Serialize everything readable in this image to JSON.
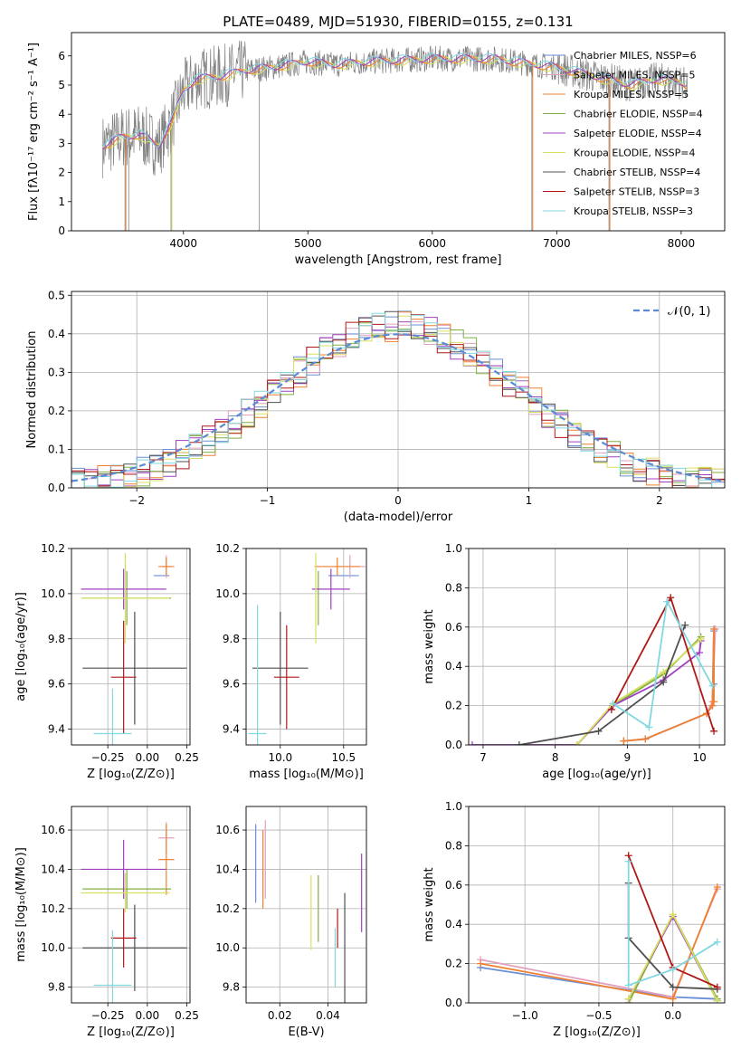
{
  "figure_title": "PLATE=0489, MJD=51930, FIBERID=0155, z=0.131",
  "colors": {
    "chabrier_miles": "#6a8fd5",
    "salpeter_miles": "#e0a0c0",
    "kroupa_miles": "#f08030",
    "chabrier_elodie": "#80b040",
    "salpeter_elodie": "#a040c0",
    "kroupa_elodie": "#d8e060",
    "chabrier_stelib": "#505050",
    "salpeter_stelib": "#b01818",
    "kroupa_stelib": "#80d8e0",
    "data": "#808080",
    "normal": "#5b8ad6",
    "grid": "#b0b0b0"
  },
  "chart_data": [
    {
      "id": "spectrum",
      "type": "line",
      "xlabel": "wavelength [Angstrom, rest frame]",
      "ylabel": "Flux [fλ10⁻¹⁷ erg cm⁻² s⁻¹ A⁻¹]",
      "xlim": [
        3100,
        8350
      ],
      "ylim": [
        0,
        6.8
      ],
      "xticks": [
        "4000",
        "5000",
        "6000",
        "7000",
        "8000"
      ],
      "yticks": [
        "0",
        "1",
        "2",
        "3",
        "4",
        "5",
        "6"
      ],
      "legend": [
        "Chabrier MILES, NSSP=6",
        "Salpeter MILES, NSSP=5",
        "Kroupa MILES, NSSP=5",
        "Chabrier ELODIE, NSSP=4",
        "Salpeter ELODIE, NSSP=4",
        "Kroupa ELODIE, NSSP=4",
        "Chabrier STELIB, NSSP=4",
        "Salpeter STELIB, NSSP=3",
        "Kroupa STELIB, NSSP=3"
      ],
      "continuum_x": [
        3350,
        3500,
        3650,
        3800,
        3900,
        4000,
        4100,
        4300,
        4500,
        4700,
        5000,
        5200,
        5500,
        6000,
        6500,
        7000,
        7300,
        7600,
        7800,
        8000,
        8050
      ],
      "continuum_y": [
        2.9,
        3.2,
        3.3,
        2.9,
        3.7,
        4.8,
        5.2,
        5.3,
        5.5,
        5.6,
        5.8,
        5.7,
        5.8,
        5.9,
        5.9,
        5.6,
        5.3,
        5.0,
        5.2,
        5.1,
        5.0
      ]
    },
    {
      "id": "residuals",
      "type": "histogram",
      "xlabel": "(data-model)/error",
      "ylabel": "Normed distribution",
      "xlim": [
        -2.5,
        2.5
      ],
      "ylim": [
        0,
        0.51
      ],
      "xticks": [
        "−2",
        "−1",
        "0",
        "1",
        "2"
      ],
      "yticks": [
        "0.0",
        "0.1",
        "0.2",
        "0.3",
        "0.4",
        "0.5"
      ],
      "legend": "𝒩(0, 1)"
    },
    {
      "id": "age_vs_Z",
      "type": "scatter",
      "xlabel": "Z [log₁₀(Z/Z⊙)]",
      "ylabel": "age  [log₁₀(age/yr)]",
      "xlim": [
        -0.48,
        0.27
      ],
      "ylim": [
        9.33,
        10.2
      ],
      "xticks": [
        "−0.25",
        "0.00",
        "0.25"
      ],
      "yticks": [
        "9.4",
        "9.6",
        "9.8",
        "10.0",
        "10.2"
      ],
      "points": [
        {
          "s": "chabrier_miles",
          "x": 0.09,
          "y": 10.08,
          "xe": 0.05,
          "ye": 0.0
        },
        {
          "s": "salpeter_miles",
          "x": 0.12,
          "y": 10.12,
          "xe": 0.03,
          "ye": 0.05
        },
        {
          "s": "kroupa_miles",
          "x": 0.12,
          "y": 10.12,
          "xe": 0.05,
          "ye": 0.04
        },
        {
          "s": "chabrier_elodie",
          "x": -0.13,
          "y": 9.98,
          "xe": 0.28,
          "ye": 0.12
        },
        {
          "s": "salpeter_elodie",
          "x": -0.15,
          "y": 10.02,
          "xe": 0.27,
          "ye": 0.09
        },
        {
          "s": "kroupa_elodie",
          "x": -0.14,
          "y": 9.98,
          "xe": 0.28,
          "ye": 0.2
        },
        {
          "s": "chabrier_stelib",
          "x": -0.08,
          "y": 9.67,
          "xe": 0.33,
          "ye": 0.25
        },
        {
          "s": "salpeter_stelib",
          "x": -0.15,
          "y": 9.63,
          "xe": 0.08,
          "ye": 0.25
        },
        {
          "s": "kroupa_stelib",
          "x": -0.22,
          "y": 9.38,
          "xe": 0.12,
          "ye": 0.2
        }
      ]
    },
    {
      "id": "age_vs_mass",
      "type": "scatter",
      "xlabel": "mass [log₁₀(M/M⊙)]",
      "ylabel": "",
      "xlim": [
        9.73,
        10.68
      ],
      "ylim": [
        9.33,
        10.2
      ],
      "xticks": [
        "10.0",
        "10.5"
      ],
      "yticks": [
        "9.4",
        "9.6",
        "9.8",
        "10.0",
        "10.2"
      ],
      "points": [
        {
          "s": "chabrier_miles",
          "x": 10.5,
          "y": 10.08,
          "xe": 0.12,
          "ye": 0.0
        },
        {
          "s": "salpeter_miles",
          "x": 10.55,
          "y": 10.12,
          "xe": 0.12,
          "ye": 0.05
        },
        {
          "s": "kroupa_miles",
          "x": 10.45,
          "y": 10.12,
          "xe": 0.18,
          "ye": 0.04
        },
        {
          "s": "chabrier_elodie",
          "x": 10.3,
          "y": 9.98,
          "xe": 0.0,
          "ye": 0.12
        },
        {
          "s": "salpeter_elodie",
          "x": 10.4,
          "y": 10.02,
          "xe": 0.15,
          "ye": 0.09
        },
        {
          "s": "kroupa_elodie",
          "x": 10.28,
          "y": 9.98,
          "xe": 0.0,
          "ye": 0.2
        },
        {
          "s": "chabrier_stelib",
          "x": 10.0,
          "y": 9.67,
          "xe": 0.22,
          "ye": 0.25
        },
        {
          "s": "salpeter_stelib",
          "x": 10.05,
          "y": 9.63,
          "xe": 0.1,
          "ye": 0.23
        },
        {
          "s": "kroupa_stelib",
          "x": 9.82,
          "y": 9.38,
          "xe": 0.07,
          "ye": 0.57
        }
      ]
    },
    {
      "id": "mass_weight_vs_age",
      "type": "line",
      "xlabel": "age  [log₁₀(age/yr)]",
      "ylabel": "mass weight",
      "xlim": [
        6.8,
        10.35
      ],
      "ylim": [
        0,
        1
      ],
      "xticks": [
        "7",
        "8",
        "9",
        "10"
      ],
      "yticks": [
        "0.0",
        "0.2",
        "0.4",
        "0.6",
        "0.8",
        "1.0"
      ],
      "series": [
        {
          "s": "chabrier_miles",
          "x": [
            8.95,
            9.25,
            10.1,
            10.18,
            10.2,
            10.2
          ],
          "y": [
            0.02,
            0.03,
            0.16,
            0.2,
            0.58,
            0.31
          ]
        },
        {
          "s": "salpeter_miles",
          "x": [
            8.95,
            9.25,
            10.1,
            10.18,
            10.22
          ],
          "y": [
            0.02,
            0.03,
            0.16,
            0.22,
            0.59
          ]
        },
        {
          "s": "kroupa_miles",
          "x": [
            8.95,
            9.25,
            10.1,
            10.18,
            10.2,
            10.2
          ],
          "y": [
            0.02,
            0.03,
            0.16,
            0.2,
            0.59,
            0.22
          ]
        },
        {
          "s": "chabrier_elodie",
          "x": [
            8.3,
            8.8,
            9.5,
            10.02
          ],
          "y": [
            0.0,
            0.2,
            0.36,
            0.55
          ]
        },
        {
          "s": "salpeter_elodie",
          "x": [
            6.85,
            8.3,
            8.8,
            9.5,
            10.0,
            10.02
          ],
          "y": [
            0.0,
            0.0,
            0.2,
            0.33,
            0.47,
            0.53
          ]
        },
        {
          "s": "kroupa_elodie",
          "x": [
            8.3,
            8.8,
            9.5,
            10.02
          ],
          "y": [
            0.0,
            0.21,
            0.37,
            0.54
          ]
        },
        {
          "s": "chabrier_stelib",
          "x": [
            7.5,
            8.6,
            9.5,
            9.8
          ],
          "y": [
            0.0,
            0.07,
            0.32,
            0.61
          ]
        },
        {
          "s": "salpeter_stelib",
          "x": [
            8.78,
            9.6,
            10.2
          ],
          "y": [
            0.18,
            0.75,
            0.07
          ]
        },
        {
          "s": "kroupa_stelib",
          "x": [
            8.8,
            9.3,
            9.55,
            10.18
          ],
          "y": [
            0.21,
            0.09,
            0.73,
            0.3
          ]
        }
      ]
    },
    {
      "id": "mass_vs_Z",
      "type": "scatter",
      "xlabel": "Z [log₁₀(Z/Z⊙)]",
      "ylabel": "mass [log₁₀(M/M⊙)]",
      "xlim": [
        -0.48,
        0.27
      ],
      "ylim": [
        9.72,
        10.72
      ],
      "xticks": [
        "−0.25",
        "0.00",
        "0.25"
      ],
      "yticks": [
        "9.8",
        "10.0",
        "10.2",
        "10.4",
        "10.6"
      ],
      "points": [
        {
          "s": "chabrier_miles",
          "x": 0.09,
          "y": 10.45,
          "xe": 0.0,
          "ye": 0.0
        },
        {
          "s": "salpeter_miles",
          "x": 0.12,
          "y": 10.56,
          "xe": 0.05,
          "ye": 0.08
        },
        {
          "s": "kroupa_miles",
          "x": 0.12,
          "y": 10.45,
          "xe": 0.05,
          "ye": 0.18
        },
        {
          "s": "chabrier_elodie",
          "x": -0.13,
          "y": 10.3,
          "xe": 0.28,
          "ye": 0.1
        },
        {
          "s": "salpeter_elodie",
          "x": -0.15,
          "y": 10.4,
          "xe": 0.27,
          "ye": 0.15
        },
        {
          "s": "kroupa_elodie",
          "x": -0.14,
          "y": 10.28,
          "xe": 0.28,
          "ye": 0.1
        },
        {
          "s": "chabrier_stelib",
          "x": -0.08,
          "y": 10.0,
          "xe": 0.33,
          "ye": 0.22
        },
        {
          "s": "salpeter_stelib",
          "x": -0.15,
          "y": 10.05,
          "xe": 0.08,
          "ye": 0.15
        },
        {
          "s": "kroupa_stelib",
          "x": -0.22,
          "y": 9.81,
          "xe": 0.12,
          "ye": 0.28
        }
      ]
    },
    {
      "id": "mass_vs_ebv",
      "type": "scatter",
      "xlabel": "E(B-V)",
      "ylabel": "",
      "xlim": [
        0.006,
        0.056
      ],
      "ylim": [
        9.72,
        10.72
      ],
      "xticks": [
        "0.02",
        "0.04"
      ],
      "yticks": [
        "9.8",
        "10.0",
        "10.2",
        "10.4",
        "10.6"
      ],
      "points": [
        {
          "s": "chabrier_miles",
          "x": 0.01,
          "y": 10.43,
          "xe": 0,
          "ye": 0.2
        },
        {
          "s": "salpeter_miles",
          "x": 0.014,
          "y": 10.45,
          "xe": 0,
          "ye": 0.2
        },
        {
          "s": "kroupa_miles",
          "x": 0.013,
          "y": 10.4,
          "xe": 0,
          "ye": 0.2
        },
        {
          "s": "chabrier_elodie",
          "x": 0.036,
          "y": 10.2,
          "xe": 0,
          "ye": 0.17
        },
        {
          "s": "salpeter_elodie",
          "x": 0.054,
          "y": 10.28,
          "xe": 0,
          "ye": 0.2
        },
        {
          "s": "kroupa_elodie",
          "x": 0.033,
          "y": 10.18,
          "xe": 0,
          "ye": 0.19
        },
        {
          "s": "chabrier_stelib",
          "x": 0.047,
          "y": 10.0,
          "xe": 0,
          "ye": 0.28
        },
        {
          "s": "salpeter_stelib",
          "x": 0.044,
          "y": 10.1,
          "xe": 0,
          "ye": 0.1
        },
        {
          "s": "kroupa_stelib",
          "x": 0.043,
          "y": 9.95,
          "xe": 0,
          "ye": 0.15
        }
      ]
    },
    {
      "id": "mass_weight_vs_Z",
      "type": "line",
      "xlabel": "Z [log₁₀(Z/Z⊙)]",
      "ylabel": "mass weight",
      "xlim": [
        -1.38,
        0.35
      ],
      "ylim": [
        0,
        1
      ],
      "xticks": [
        "−1.0",
        "−0.5",
        "0.0"
      ],
      "yticks": [
        "0.0",
        "0.2",
        "0.4",
        "0.6",
        "0.8",
        "1.0"
      ],
      "series": [
        {
          "s": "chabrier_miles",
          "x": [
            -1.3,
            0.0,
            0.3
          ],
          "y": [
            0.18,
            0.03,
            0.02
          ]
        },
        {
          "s": "salpeter_miles",
          "x": [
            -1.3,
            0.0,
            0.3
          ],
          "y": [
            0.22,
            0.03,
            0.58
          ]
        },
        {
          "s": "kroupa_miles",
          "x": [
            -1.3,
            0.0,
            0.3
          ],
          "y": [
            0.2,
            0.02,
            0.59
          ]
        },
        {
          "s": "chabrier_elodie",
          "x": [
            -0.3,
            0.0,
            0.3
          ],
          "y": [
            0.0,
            0.45,
            0.02
          ]
        },
        {
          "s": "salpeter_elodie",
          "x": [
            -0.3,
            -0.3,
            0.0,
            0.3
          ],
          "y": [
            0.0,
            0.02,
            0.44,
            0.01
          ]
        },
        {
          "s": "kroupa_elodie",
          "x": [
            -0.3,
            0.0,
            0.3
          ],
          "y": [
            0.02,
            0.45,
            0.01
          ]
        },
        {
          "s": "chabrier_stelib",
          "x": [
            -0.3,
            -0.3,
            0.0,
            0.3
          ],
          "y": [
            0.61,
            0.33,
            0.08,
            0.07
          ]
        },
        {
          "s": "salpeter_stelib",
          "x": [
            -0.3,
            0.0,
            0.3
          ],
          "y": [
            0.75,
            0.18,
            0.08
          ]
        },
        {
          "s": "kroupa_stelib",
          "x": [
            -0.3,
            -0.3,
            0.0,
            0.3
          ],
          "y": [
            0.72,
            0.09,
            0.17,
            0.31
          ]
        }
      ]
    }
  ]
}
